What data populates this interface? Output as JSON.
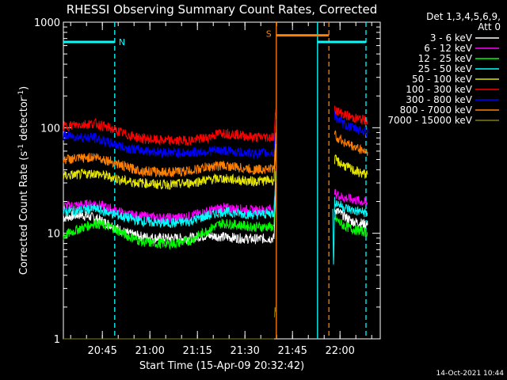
{
  "chart_data": {
    "type": "line",
    "title": "RHESSI Observing Summary Count Rates, Corrected",
    "xlabel": "Start Time (15-Apr-09 20:32:42)",
    "ylabel_main": "Corrected Count Rate (s",
    "ylabel_sup1": "-1",
    "ylabel_mid": " detector",
    "ylabel_sup2": "-1",
    "ylabel_end": ")",
    "ylim": [
      1,
      1000
    ],
    "yscale": "log",
    "xlim_min": [
      0,
      100
    ],
    "x_ticks": [
      {
        "label": "20:45",
        "min": 12.3
      },
      {
        "label": "21:00",
        "min": 27.3
      },
      {
        "label": "21:15",
        "min": 42.3
      },
      {
        "label": "21:30",
        "min": 57.3
      },
      {
        "label": "21:45",
        "min": 72.3
      },
      {
        "label": "22:00",
        "min": 87.3
      }
    ],
    "y_ticks": [
      {
        "label": "1",
        "value": 1
      },
      {
        "label": "10",
        "value": 10
      },
      {
        "label": "100",
        "value": 100
      },
      {
        "label": "1000",
        "value": 1000
      }
    ],
    "legend": {
      "placement": "right",
      "header1": "Det 1,3,4,5,6,9,",
      "header2": "Att 0"
    },
    "series": [
      {
        "name": "3 - 6 keV",
        "color": "#ffffff",
        "segments": [
          {
            "x": [
              0,
              5,
              10,
              15,
              20,
              25,
              30,
              35,
              40,
              45,
              50,
              55,
              60,
              66.5,
              67.0
            ],
            "y": [
              14,
              15,
              14,
              12,
              10,
              9.3,
              9.0,
              9.0,
              9.0,
              9.5,
              9.3,
              9.0,
              8.8,
              9.0,
              30
            ]
          },
          {
            "x": [
              85.6,
              88,
              91,
              94,
              96
            ],
            "y": [
              17,
              15,
              13,
              12.5,
              12
            ]
          }
        ]
      },
      {
        "name": "6 - 12 keV",
        "color": "#ff00ff",
        "segments": [
          {
            "x": [
              0,
              5,
              10,
              15,
              20,
              25,
              30,
              35,
              40,
              45,
              50,
              55,
              60,
              66.5,
              67.0
            ],
            "y": [
              18,
              18.5,
              19,
              17,
              15,
              14.5,
              14,
              14,
              14.5,
              16,
              17.5,
              17,
              16.5,
              17,
              40
            ]
          },
          {
            "x": [
              85.6,
              88,
              91,
              94,
              96
            ],
            "y": [
              24,
              22,
              21,
              20,
              19
            ]
          }
        ]
      },
      {
        "name": "12 - 25 keV",
        "color": "#00ff00",
        "segments": [
          {
            "x": [
              0,
              5,
              10,
              15,
              20,
              25,
              30,
              35,
              40,
              45,
              50,
              55,
              60,
              66.5,
              67.0
            ],
            "y": [
              9.5,
              11,
              12.5,
              11.5,
              9.5,
              8.3,
              8.0,
              8.0,
              8.5,
              10.5,
              12.5,
              12.0,
              11.5,
              11.5,
              35
            ]
          },
          {
            "x": [
              85.6,
              88,
              91,
              94,
              96
            ],
            "y": [
              14,
              12,
              11,
              10.5,
              10.2
            ]
          }
        ]
      },
      {
        "name": "25 - 50 keV",
        "color": "#00ffff",
        "segments": [
          {
            "x": [
              0,
              5,
              10,
              15,
              20,
              25,
              30,
              35,
              40,
              45,
              50,
              55,
              60,
              66.5,
              67.0
            ],
            "y": [
              16,
              16.5,
              17,
              15.5,
              14,
              13,
              12.5,
              12.5,
              13,
              14.5,
              16,
              15.5,
              15,
              15.5,
              38
            ]
          },
          {
            "x": [
              85.0,
              85.3,
              85.6,
              88,
              91,
              94,
              96
            ],
            "y": [
              17,
              4.2,
              20,
              18,
              16.5,
              16,
              15.5
            ]
          }
        ]
      },
      {
        "name": "50 - 100 keV",
        "color": "#e6e600",
        "segments": [
          {
            "x": [
              0,
              5,
              10,
              15,
              20,
              25,
              30,
              35,
              40,
              45,
              50,
              55,
              60,
              66.5,
              67.0
            ],
            "y": [
              35,
              36,
              37,
              34,
              31,
              30,
              29,
              29,
              30,
              32,
              33,
              32,
              31,
              32,
              70
            ]
          },
          {
            "x": [
              85.6,
              88,
              91,
              94,
              96
            ],
            "y": [
              50,
              45,
              40,
              37,
              36
            ]
          }
        ]
      },
      {
        "name": "100 - 300 keV",
        "color": "#ff0000",
        "segments": [
          {
            "x": [
              0,
              5,
              10,
              15,
              20,
              25,
              30,
              35,
              40,
              45,
              50,
              55,
              60,
              66.5,
              67.0
            ],
            "y": [
              103,
              107,
              110,
              98,
              86,
              79,
              76,
              75,
              76,
              80,
              90,
              86,
              81,
              82,
              150
            ]
          },
          {
            "x": [
              85.6,
              88,
              91,
              94,
              96
            ],
            "y": [
              150,
              135,
              125,
              120,
              115
            ]
          }
        ]
      },
      {
        "name": "300 - 800 keV",
        "color": "#0000ff",
        "segments": [
          {
            "x": [
              0,
              5,
              10,
              15,
              20,
              25,
              30,
              35,
              40,
              45,
              50,
              55,
              60,
              66.5,
              67.0
            ],
            "y": [
              84,
              82,
              80,
              71,
              64,
              61,
              59,
              58,
              58,
              60,
              61,
              59,
              57,
              58,
              120
            ]
          },
          {
            "x": [
              85.6,
              88,
              91,
              94,
              96
            ],
            "y": [
              130,
              110,
              100,
              95,
              90
            ]
          }
        ]
      },
      {
        "name": "800 - 7000 keV",
        "color": "#ff8000",
        "segments": [
          {
            "x": [
              0,
              5,
              10,
              15,
              20,
              25,
              30,
              35,
              40,
              45,
              50,
              55,
              60,
              66.5,
              67.0
            ],
            "y": [
              50,
              51,
              53,
              48,
              42,
              39,
              38,
              38,
              39,
              42,
              44,
              42,
              40,
              41,
              90
            ]
          },
          {
            "x": [
              85.6,
              88,
              91,
              94,
              96
            ],
            "y": [
              85,
              75,
              67,
              62,
              59
            ]
          }
        ]
      },
      {
        "name": "7000 - 15000 keV",
        "color": "#808000",
        "segments": [
          {
            "x": [
              0,
              66.5
            ],
            "y": [
              1,
              1
            ]
          },
          {
            "x": [
              66.6,
              66.8,
              67.0
            ],
            "y": [
              1.6,
              2.0,
              1.8
            ]
          }
        ]
      }
    ],
    "attenuator_lines": [
      {
        "x": 67.2,
        "color": "#ff8000",
        "style": "solid"
      },
      {
        "x": 80.2,
        "color": "#00ffff",
        "style": "solid"
      },
      {
        "x": 83.8,
        "color": "#ff8000",
        "style": "dashed"
      },
      {
        "x": 16.2,
        "color": "#00ffff",
        "style": "dashed"
      },
      {
        "x": 95.5,
        "color": "#00ffff",
        "style": "dashed"
      }
    ],
    "night_bars": [
      {
        "x0": 0,
        "x1": 16.2,
        "y": 650,
        "color": "#00ffff"
      },
      {
        "x0": 80.2,
        "x1": 95.5,
        "y": 650,
        "color": "#00ffff"
      }
    ],
    "saa_bar": {
      "x0": 67.2,
      "x1": 83.8,
      "y": 750,
      "color": "#ff8000"
    },
    "flags": [
      {
        "label": "N",
        "x": 18.5,
        "y": 650,
        "color": "#00ffff"
      },
      {
        "label": "S",
        "x": 64.8,
        "y": 780,
        "color": "#ff8000"
      }
    ]
  },
  "footer": {
    "timestamp": "14-Oct-2021 10:44"
  }
}
